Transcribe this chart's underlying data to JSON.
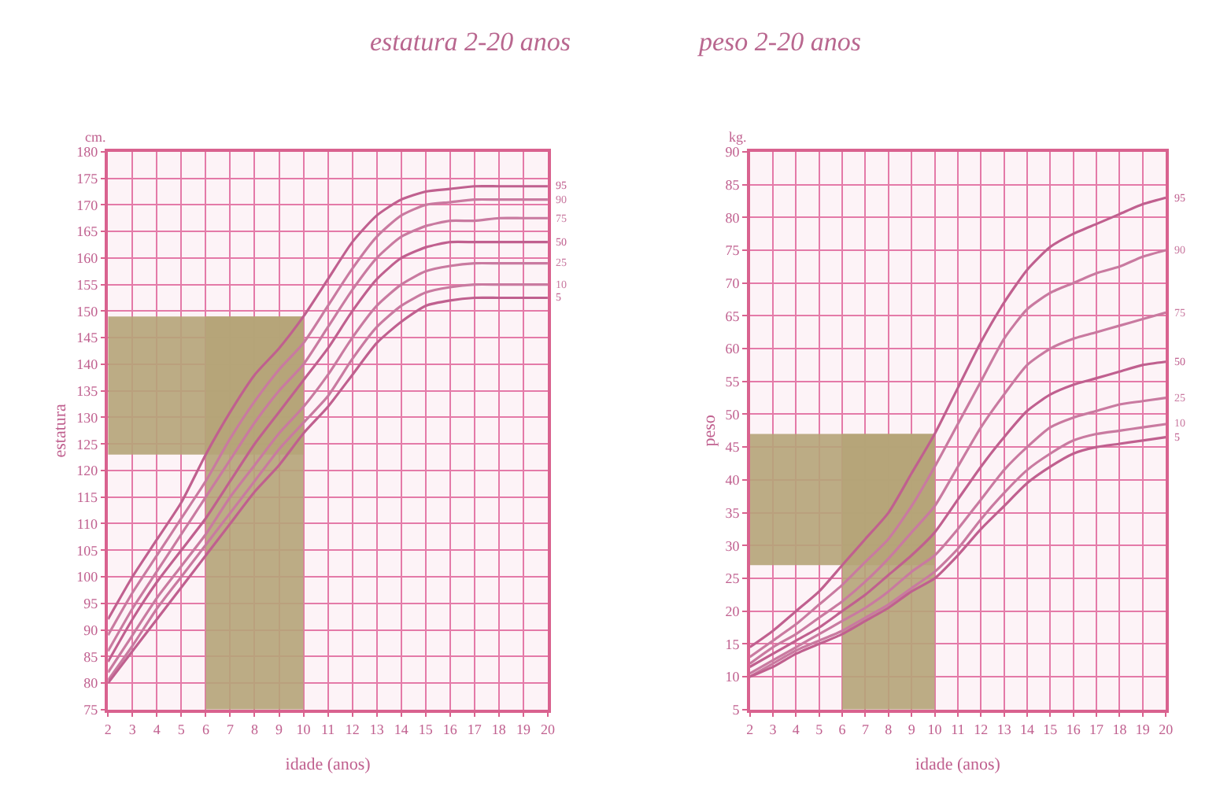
{
  "chart_data": [
    {
      "type": "line",
      "title": "estatura 2-20 anos",
      "xlabel": "idade (anos)",
      "ylabel": "estatura",
      "annotations": [
        "cm."
      ],
      "x": [
        2,
        3,
        4,
        5,
        6,
        7,
        8,
        9,
        10,
        11,
        12,
        13,
        14,
        15,
        16,
        17,
        18,
        19,
        20
      ],
      "xlim": [
        2,
        20
      ],
      "xticks": [
        2,
        3,
        4,
        5,
        6,
        7,
        8,
        9,
        10,
        11,
        12,
        13,
        14,
        15,
        16,
        17,
        18,
        19,
        20
      ],
      "ylim": [
        75,
        180
      ],
      "yticks": [
        75,
        80,
        85,
        90,
        95,
        100,
        105,
        110,
        115,
        120,
        125,
        130,
        135,
        140,
        145,
        150,
        155,
        160,
        165,
        170,
        175,
        180
      ],
      "grid": true,
      "legend": false,
      "marker": "none",
      "line_style": "solid",
      "bands": [
        {
          "axis": "y",
          "from": 123,
          "to": 149,
          "color": "#b5a478"
        },
        {
          "axis": "x",
          "from": 6,
          "to": 10,
          "color": "#b5a478"
        }
      ],
      "series": [
        {
          "name": "95",
          "color": "#c0608f",
          "values": [
            92,
            100,
            107,
            114,
            123,
            131,
            138,
            143,
            149,
            156,
            163,
            168,
            171,
            172.5,
            173,
            173.5,
            173.5,
            173.5,
            173.5
          ]
        },
        {
          "name": "90",
          "color": "#c97aa0",
          "values": [
            89,
            97,
            104,
            111,
            118,
            126,
            133,
            139,
            144,
            151,
            158,
            164,
            168,
            170,
            170.5,
            171,
            171,
            171,
            171
          ]
        },
        {
          "name": "75",
          "color": "#c97aa0",
          "values": [
            86,
            94,
            101,
            108,
            115,
            122,
            129,
            135,
            140,
            147,
            154,
            160,
            164,
            166,
            167,
            167,
            167.5,
            167.5,
            167.5
          ]
        },
        {
          "name": "50",
          "color": "#c0608f",
          "values": [
            84,
            92,
            99,
            105,
            111,
            118,
            125,
            131,
            137,
            143,
            150,
            156,
            160,
            162,
            163,
            163,
            163,
            163,
            163
          ]
        },
        {
          "name": "25",
          "color": "#c97aa0",
          "values": [
            82,
            89,
            96,
            102,
            108,
            115,
            121,
            127,
            132,
            138,
            145,
            151,
            155,
            157.5,
            158.5,
            159,
            159,
            159,
            159
          ]
        },
        {
          "name": "10",
          "color": "#c97aa0",
          "values": [
            80.5,
            87,
            94,
            100,
            106,
            112,
            118,
            124,
            129,
            134,
            141,
            147,
            151,
            153.5,
            154.5,
            155,
            155,
            155,
            155
          ]
        },
        {
          "name": "5",
          "color": "#c0608f",
          "values": [
            80,
            86,
            92,
            98,
            104,
            110,
            116,
            121,
            127,
            132,
            138,
            144,
            148,
            151,
            152,
            152.5,
            152.5,
            152.5,
            152.5
          ]
        }
      ]
    },
    {
      "type": "line",
      "title": "peso 2-20 anos",
      "xlabel": "idade (anos)",
      "ylabel": "peso",
      "annotations": [
        "kg."
      ],
      "x": [
        2,
        3,
        4,
        5,
        6,
        7,
        8,
        9,
        10,
        11,
        12,
        13,
        14,
        15,
        16,
        17,
        18,
        19,
        20
      ],
      "xlim": [
        2,
        20
      ],
      "xticks": [
        2,
        3,
        4,
        5,
        6,
        7,
        8,
        9,
        10,
        11,
        12,
        13,
        14,
        15,
        16,
        17,
        18,
        19,
        20
      ],
      "ylim": [
        5,
        90
      ],
      "yticks": [
        5,
        10,
        15,
        20,
        25,
        30,
        35,
        40,
        45,
        50,
        55,
        60,
        65,
        70,
        75,
        80,
        85,
        90
      ],
      "grid": true,
      "legend": false,
      "marker": "none",
      "line_style": "solid",
      "bands": [
        {
          "axis": "y",
          "from": 27,
          "to": 47,
          "color": "#b5a478"
        },
        {
          "axis": "x",
          "from": 6,
          "to": 10,
          "color": "#b5a478"
        }
      ],
      "series": [
        {
          "name": "95",
          "color": "#c0608f",
          "values": [
            14.5,
            17,
            20,
            23,
            27,
            31,
            35,
            41,
            47,
            54,
            61,
            67,
            72,
            75.5,
            77.5,
            79,
            80.5,
            82,
            83
          ]
        },
        {
          "name": "90",
          "color": "#c97aa0",
          "values": [
            13,
            15.5,
            18,
            21,
            24,
            27.5,
            31,
            36,
            42,
            48.5,
            55,
            61.5,
            66,
            68.5,
            70,
            71.5,
            72.5,
            74,
            75
          ]
        },
        {
          "name": "75",
          "color": "#c97aa0",
          "values": [
            12,
            14.5,
            16.5,
            19,
            21.5,
            24.5,
            28,
            32,
            36,
            42,
            48,
            53,
            57.5,
            60,
            61.5,
            62.5,
            63.5,
            64.5,
            65.5
          ]
        },
        {
          "name": "50",
          "color": "#c0608f",
          "values": [
            11.5,
            13.5,
            15.5,
            17.5,
            20,
            22.5,
            25.5,
            28.5,
            32,
            37,
            42,
            46.5,
            50.5,
            53,
            54.5,
            55.5,
            56.5,
            57.5,
            58
          ]
        },
        {
          "name": "25",
          "color": "#c97aa0",
          "values": [
            10.5,
            12.5,
            14.5,
            16.5,
            18.5,
            20.5,
            23,
            26,
            28.5,
            32.5,
            37,
            41.5,
            45,
            48,
            49.5,
            50.5,
            51.5,
            52,
            52.5
          ]
        },
        {
          "name": "10",
          "color": "#c97aa0",
          "values": [
            10,
            12,
            14,
            15.5,
            17,
            19,
            21,
            23.5,
            26,
            29.5,
            34,
            38,
            41.5,
            44,
            46,
            47,
            47.5,
            48,
            48.5
          ]
        },
        {
          "name": "5",
          "color": "#c0608f",
          "values": [
            10,
            11.5,
            13.5,
            15,
            16.5,
            18.5,
            20.5,
            23,
            25,
            28.5,
            32.5,
            36,
            39.5,
            42,
            44,
            45,
            45.5,
            46,
            46.5
          ]
        }
      ]
    }
  ]
}
